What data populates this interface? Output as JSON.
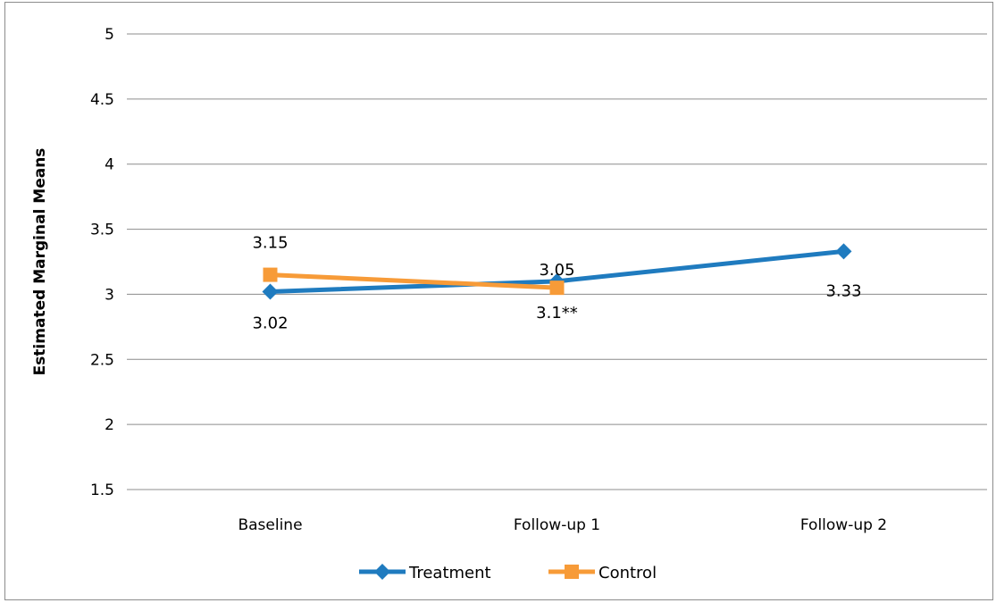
{
  "chart_data": {
    "type": "line",
    "title": "",
    "xlabel": "",
    "ylabel": "Estimated Marginal Means",
    "categories": [
      "Baseline",
      "Follow-up 1",
      "Follow-up 2"
    ],
    "ylim": [
      1.5,
      5
    ],
    "yticks": [
      "1.5",
      "2",
      "2.5",
      "3",
      "3.5",
      "4",
      "4.5",
      "5"
    ],
    "grid": true,
    "legend_position": "bottom",
    "series": [
      {
        "name": "Treatment",
        "color": "#1f7bbf",
        "marker": "diamond",
        "values": [
          3.02,
          3.1,
          3.33
        ],
        "labels": [
          "3.02",
          "3.1**",
          "3.33"
        ]
      },
      {
        "name": "Control",
        "color": "#f79b38",
        "marker": "square",
        "values": [
          3.15,
          3.05,
          null
        ],
        "labels": [
          "3.15",
          "3.05",
          ""
        ]
      }
    ]
  }
}
